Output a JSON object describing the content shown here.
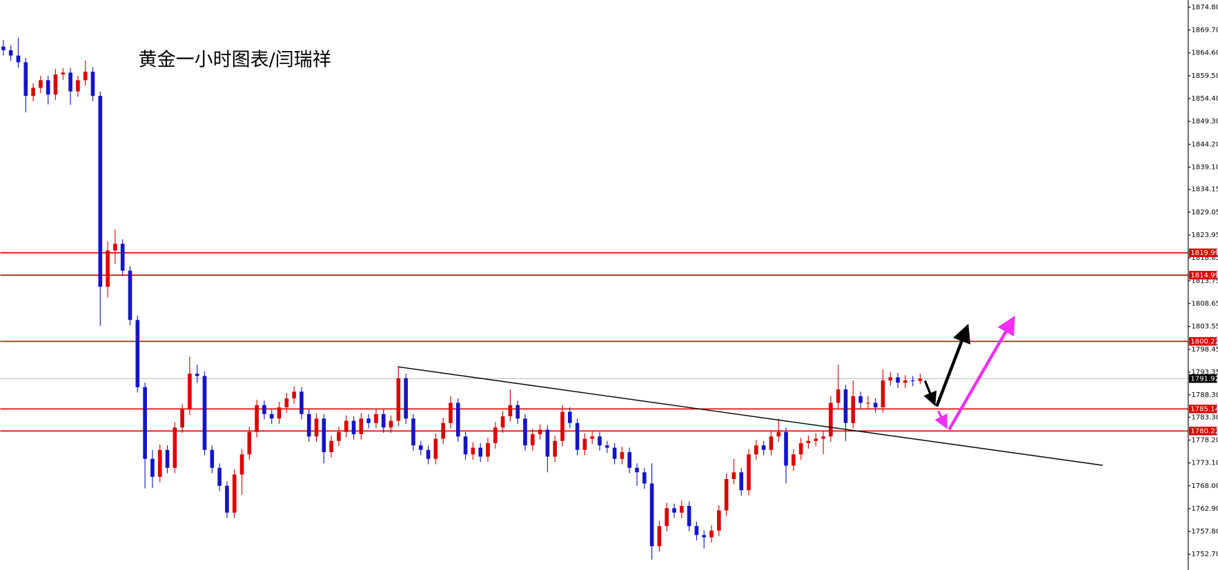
{
  "chart_data": {
    "type": "candlestick",
    "title": "黄金一小时图表/闫瑞祥",
    "up_color": "#e00000",
    "down_color": "#1414c8",
    "ylim": [
      1749.2,
      1876.4
    ],
    "yticks": [
      {
        "value": 1874.8,
        "label": "1874.80"
      },
      {
        "value": 1869.7,
        "label": "1869.70"
      },
      {
        "value": 1864.6,
        "label": "1864.60"
      },
      {
        "value": 1859.5,
        "label": "1859.50"
      },
      {
        "value": 1854.4,
        "label": "1854.40"
      },
      {
        "value": 1849.3,
        "label": "1849.30"
      },
      {
        "value": 1844.2,
        "label": "1844.20"
      },
      {
        "value": 1839.1,
        "label": "1839.10"
      },
      1834.15,
      1829.05,
      1823.95,
      1818.85,
      1813.75,
      1808.65,
      1803.55,
      1798.45,
      1793.35,
      {
        "value": 1788.3,
        "label": "1788.30"
      },
      {
        "value": 1783.3,
        "label": "1783.30"
      },
      {
        "value": 1778.2,
        "label": "1778.20"
      },
      {
        "value": 1773.1,
        "label": "1773.10"
      },
      {
        "value": 1768.0,
        "label": "1768.00"
      },
      {
        "value": 1762.9,
        "label": "1762.90"
      },
      {
        "value": 1757.8,
        "label": "1757.80"
      },
      {
        "value": 1752.7,
        "label": "1752.70"
      }
    ],
    "levels": [
      1819.99,
      1814.99,
      1800.22,
      1785.14,
      1780.22
    ],
    "level_color": "#e00000",
    "current_price": 1791.92,
    "ohlc": [
      [
        1866.0,
        1867.5,
        1864.0,
        1865.2
      ],
      [
        1865.2,
        1866.3,
        1862.8,
        1864.0
      ],
      [
        1864.0,
        1868.0,
        1861.3,
        1862.5
      ],
      [
        1862.5,
        1863.5,
        1851.3,
        1855.0
      ],
      [
        1855.0,
        1857.8,
        1853.8,
        1856.8
      ],
      [
        1856.8,
        1859.5,
        1855.6,
        1858.5
      ],
      [
        1858.5,
        1859.5,
        1853.1,
        1855.3
      ],
      [
        1855.3,
        1861.0,
        1854.1,
        1859.8
      ],
      [
        1859.8,
        1861.2,
        1858.6,
        1860.2
      ],
      [
        1860.2,
        1861.2,
        1853.0,
        1856.0
      ],
      [
        1856.0,
        1859.5,
        1854.8,
        1858.5
      ],
      [
        1858.5,
        1862.9,
        1857.3,
        1860.4
      ],
      [
        1860.4,
        1861.4,
        1853.8,
        1855.0
      ],
      [
        1855.0,
        1856.0,
        1803.7,
        1812.4
      ],
      [
        1812.4,
        1822.5,
        1810.0,
        1820.5
      ],
      [
        1820.5,
        1825.2,
        1817.5,
        1822.0
      ],
      [
        1822.0,
        1823.0,
        1814.8,
        1816.0
      ],
      [
        1816.0,
        1817.0,
        1803.8,
        1805.0
      ],
      [
        1805.0,
        1806.0,
        1788.8,
        1790.0
      ],
      [
        1790.0,
        1791.0,
        1767.4,
        1774.0
      ],
      [
        1774.0,
        1776.0,
        1767.5,
        1770.0
      ],
      [
        1770.0,
        1777.2,
        1768.8,
        1776.0
      ],
      [
        1776.0,
        1777.0,
        1770.8,
        1772.0
      ],
      [
        1772.0,
        1782.2,
        1770.8,
        1781.0
      ],
      [
        1781.0,
        1786.2,
        1779.8,
        1785.0
      ],
      [
        1785.0,
        1796.8,
        1783.8,
        1793.0
      ],
      [
        1793.0,
        1795.0,
        1791.0,
        1792.5
      ],
      [
        1792.5,
        1793.5,
        1774.8,
        1776.0
      ],
      [
        1776.0,
        1777.0,
        1770.8,
        1772.0
      ],
      [
        1772.0,
        1773.0,
        1766.8,
        1768.0
      ],
      [
        1768.0,
        1769.0,
        1760.8,
        1762.0
      ],
      [
        1762.0,
        1771.7,
        1760.8,
        1770.5
      ],
      [
        1770.5,
        1776.2,
        1766.0,
        1775.0
      ],
      [
        1775.0,
        1781.2,
        1773.8,
        1780.0
      ],
      [
        1780.0,
        1787.2,
        1778.8,
        1786.0
      ],
      [
        1786.0,
        1787.0,
        1782.8,
        1784.0
      ],
      [
        1784.0,
        1785.0,
        1781.8,
        1783.0
      ],
      [
        1783.0,
        1786.7,
        1781.8,
        1785.5
      ],
      [
        1785.5,
        1788.7,
        1784.3,
        1787.5
      ],
      [
        1787.5,
        1790.2,
        1786.3,
        1789.0
      ],
      [
        1789.0,
        1790.0,
        1782.8,
        1784.0
      ],
      [
        1784.0,
        1785.0,
        1777.8,
        1779.0
      ],
      [
        1779.0,
        1784.2,
        1777.8,
        1783.0
      ],
      [
        1783.0,
        1784.0,
        1773.0,
        1775.5
      ],
      [
        1775.5,
        1779.2,
        1774.3,
        1778.0
      ],
      [
        1778.0,
        1781.2,
        1776.8,
        1780.0
      ],
      [
        1780.0,
        1783.7,
        1778.8,
        1782.5
      ],
      [
        1782.5,
        1783.5,
        1778.3,
        1779.5
      ],
      [
        1779.5,
        1784.2,
        1778.3,
        1783.0
      ],
      [
        1783.0,
        1784.0,
        1780.8,
        1782.0
      ],
      [
        1782.0,
        1785.2,
        1780.8,
        1784.0
      ],
      [
        1784.0,
        1785.0,
        1779.8,
        1781.0
      ],
      [
        1781.0,
        1783.7,
        1779.8,
        1782.5
      ],
      [
        1782.5,
        1794.6,
        1781.3,
        1792.0
      ],
      [
        1792.0,
        1793.0,
        1781.8,
        1783.0
      ],
      [
        1783.0,
        1784.0,
        1775.8,
        1777.0
      ],
      [
        1777.0,
        1778.0,
        1774.8,
        1776.0
      ],
      [
        1776.0,
        1777.0,
        1772.8,
        1774.0
      ],
      [
        1774.0,
        1779.7,
        1772.8,
        1778.5
      ],
      [
        1778.5,
        1783.2,
        1777.3,
        1782.0
      ],
      [
        1782.0,
        1788.0,
        1780.8,
        1786.5
      ],
      [
        1786.5,
        1787.5,
        1777.8,
        1779.0
      ],
      [
        1779.0,
        1780.0,
        1773.8,
        1775.0
      ],
      [
        1775.0,
        1777.7,
        1773.8,
        1776.5
      ],
      [
        1776.5,
        1777.5,
        1773.3,
        1774.5
      ],
      [
        1774.5,
        1778.7,
        1773.3,
        1777.5
      ],
      [
        1777.5,
        1782.2,
        1776.3,
        1781.0
      ],
      [
        1781.0,
        1784.7,
        1779.8,
        1783.5
      ],
      [
        1783.5,
        1789.5,
        1782.3,
        1786.0
      ],
      [
        1786.0,
        1787.0,
        1781.8,
        1783.0
      ],
      [
        1783.0,
        1784.0,
        1775.8,
        1777.0
      ],
      [
        1777.0,
        1780.7,
        1775.8,
        1779.5
      ],
      [
        1779.5,
        1781.7,
        1778.3,
        1780.5
      ],
      [
        1780.5,
        1781.5,
        1771.0,
        1774.5
      ],
      [
        1774.5,
        1779.2,
        1773.3,
        1778.0
      ],
      [
        1778.0,
        1786.0,
        1776.8,
        1784.5
      ],
      [
        1784.5,
        1785.5,
        1780.8,
        1782.0
      ],
      [
        1782.0,
        1783.0,
        1774.8,
        1776.0
      ],
      [
        1776.0,
        1779.7,
        1774.8,
        1778.5
      ],
      [
        1778.5,
        1780.2,
        1777.3,
        1779.0
      ],
      [
        1779.0,
        1780.0,
        1775.8,
        1777.0
      ],
      [
        1777.0,
        1778.0,
        1775.3,
        1776.5
      ],
      [
        1776.5,
        1777.5,
        1772.8,
        1774.0
      ],
      [
        1774.0,
        1776.7,
        1772.8,
        1775.5
      ],
      [
        1775.5,
        1776.5,
        1770.8,
        1772.0
      ],
      [
        1772.0,
        1773.0,
        1768.0,
        1771.0
      ],
      [
        1771.0,
        1772.0,
        1767.3,
        1768.5
      ],
      [
        1768.5,
        1773.0,
        1751.5,
        1754.5
      ],
      [
        1754.5,
        1760.2,
        1753.3,
        1759.0
      ],
      [
        1759.0,
        1764.2,
        1757.8,
        1763.0
      ],
      [
        1763.0,
        1764.0,
        1760.8,
        1762.0
      ],
      [
        1762.0,
        1764.7,
        1760.8,
        1763.5
      ],
      [
        1763.5,
        1764.5,
        1757.8,
        1759.0
      ],
      [
        1759.0,
        1760.0,
        1755.8,
        1757.0
      ],
      [
        1757.0,
        1758.0,
        1754.0,
        1756.5
      ],
      [
        1756.5,
        1759.2,
        1755.3,
        1758.0
      ],
      [
        1758.0,
        1763.7,
        1756.8,
        1762.5
      ],
      [
        1762.5,
        1770.7,
        1761.3,
        1769.5
      ],
      [
        1769.5,
        1774.0,
        1768.3,
        1771.0
      ],
      [
        1771.0,
        1772.0,
        1765.8,
        1767.0
      ],
      [
        1767.0,
        1776.2,
        1765.8,
        1775.0
      ],
      [
        1775.0,
        1778.2,
        1773.8,
        1777.0
      ],
      [
        1777.0,
        1778.0,
        1774.8,
        1776.0
      ],
      [
        1776.0,
        1780.2,
        1774.8,
        1779.0
      ],
      [
        1779.0,
        1783.0,
        1777.8,
        1780.0
      ],
      [
        1780.0,
        1781.0,
        1768.5,
        1772.5
      ],
      [
        1772.5,
        1776.2,
        1771.3,
        1775.0
      ],
      [
        1775.0,
        1778.7,
        1773.8,
        1777.5
      ],
      [
        1777.5,
        1779.2,
        1776.3,
        1778.0
      ],
      [
        1778.0,
        1779.7,
        1776.8,
        1778.5
      ],
      [
        1778.5,
        1780.2,
        1775.0,
        1779.0
      ],
      [
        1779.0,
        1788.0,
        1777.8,
        1786.5
      ],
      [
        1786.5,
        1795.0,
        1785.3,
        1789.5
      ],
      [
        1789.5,
        1790.5,
        1778.0,
        1782.0
      ],
      [
        1782.0,
        1791.5,
        1780.8,
        1788.0
      ],
      [
        1788.0,
        1789.0,
        1785.3,
        1786.5
      ],
      [
        1786.5,
        1788.0,
        1785.3,
        1786.5
      ],
      [
        1786.5,
        1787.5,
        1784.3,
        1785.5
      ],
      [
        1785.5,
        1794.0,
        1784.3,
        1791.5
      ],
      [
        1791.5,
        1793.4,
        1790.3,
        1792.2
      ],
      [
        1792.2,
        1793.2,
        1789.8,
        1791.0
      ],
      [
        1791.0,
        1792.7,
        1789.8,
        1791.5
      ],
      [
        1791.5,
        1792.5,
        1790.2,
        1791.4
      ],
      [
        1791.4,
        1793.0,
        1790.7,
        1791.92
      ]
    ]
  }
}
